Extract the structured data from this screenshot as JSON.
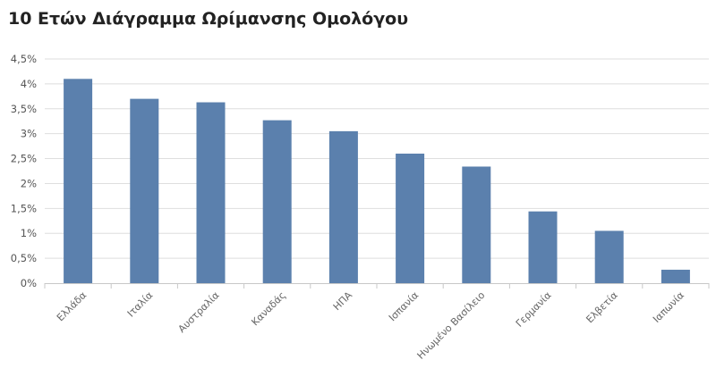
{
  "chart_data": {
    "type": "bar",
    "title": "10 Ετών Διάγραμμα Ωρίμανσης Ομολόγου",
    "xlabel": "",
    "ylabel": "",
    "categories": [
      "Ελλάδα",
      "Ιταλία",
      "Αυστραλία",
      "Καναδάς",
      "ΗΠΑ",
      "Ισπανία",
      "Ηνωμένο Βασίλειο",
      "Γερμανία",
      "Ελβετία",
      "Ιαπωνία"
    ],
    "values": [
      4.1,
      3.7,
      3.63,
      3.27,
      3.05,
      2.6,
      2.34,
      1.44,
      1.05,
      0.27
    ],
    "ylim": [
      0,
      4.5
    ],
    "yticks": [
      "0%",
      "0,5%",
      "1%",
      "1,5%",
      "2%",
      "2,5%",
      "3%",
      "3,5%",
      "4%",
      "4,5%"
    ],
    "grid": true,
    "bar_color": "#5b80ad",
    "grid_color": "#dedede"
  }
}
